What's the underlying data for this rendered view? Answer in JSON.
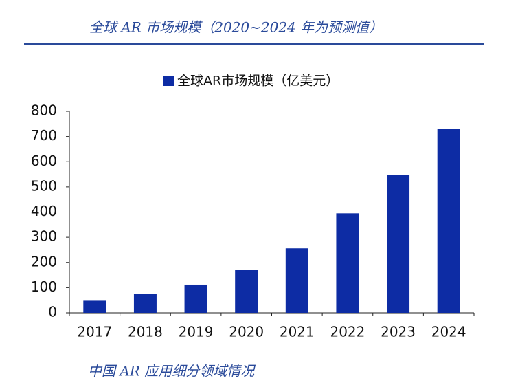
{
  "header": "全球 AR 市场规模（2020~2024 年为预测值）",
  "chart_data": {
    "type": "bar",
    "categories": [
      "2017",
      "2018",
      "2019",
      "2020",
      "2021",
      "2022",
      "2023",
      "2024"
    ],
    "series": [
      {
        "name": "全球AR市场规模（亿美元）",
        "color": "#0d2ca4",
        "values": [
          48,
          75,
          112,
          172,
          256,
          395,
          548,
          730
        ]
      }
    ],
    "ylim": [
      0,
      800
    ],
    "yticks": [
      0,
      100,
      200,
      300,
      400,
      500,
      600,
      700,
      800
    ],
    "grid": false,
    "legend": "top"
  },
  "footer": "中国 AR 应用细分领域情况"
}
